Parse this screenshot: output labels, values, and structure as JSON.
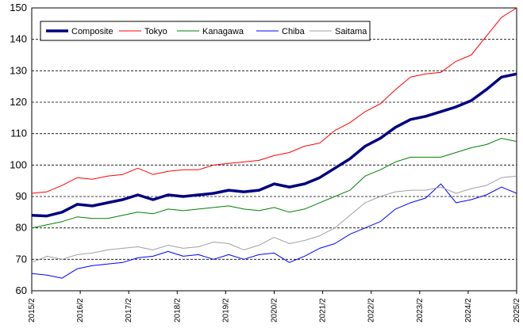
{
  "chart_data": {
    "type": "line",
    "title": "",
    "xlabel": "",
    "ylabel": "",
    "ylim": [
      60,
      150
    ],
    "yticks": [
      60,
      70,
      80,
      90,
      100,
      110,
      120,
      130,
      140,
      150
    ],
    "grid": "horizontal dashed",
    "legend_position": "top-left",
    "x_tick_labels": [
      "2015/2",
      "2016/2",
      "2017/2",
      "2018/2",
      "2019/2",
      "2020/2",
      "2021/2",
      "2022/2",
      "2023/2",
      "2024/2",
      "2025/2"
    ],
    "x_start": "2015/2",
    "x_end": "2025/2",
    "series": [
      {
        "name": "Composite",
        "color": "#000080",
        "values": [
          84.0,
          83.8,
          85.0,
          87.5,
          87.0,
          88.0,
          89.0,
          90.5,
          89.0,
          90.5,
          90.0,
          90.5,
          91.0,
          92.0,
          91.5,
          92.0,
          94.0,
          93.0,
          94.0,
          96.0,
          99.0,
          102.0,
          106.0,
          108.5,
          112.0,
          114.5,
          115.5,
          117.0,
          118.5,
          120.5,
          124.0,
          128.0,
          129.0
        ]
      },
      {
        "name": "Tokyo",
        "color": "#ff0000",
        "values": [
          91.0,
          91.5,
          93.5,
          96.0,
          95.5,
          96.5,
          97.0,
          99.0,
          97.0,
          98.0,
          98.5,
          98.5,
          100.0,
          100.5,
          101.0,
          101.5,
          103.0,
          104.0,
          106.0,
          107.0,
          111.0,
          113.5,
          117.0,
          119.5,
          124.0,
          128.0,
          129.0,
          129.5,
          133.0,
          135.0,
          141.0,
          147.0,
          150.0
        ]
      },
      {
        "name": "Kanagawa",
        "color": "#008000",
        "values": [
          80.0,
          81.0,
          82.0,
          83.5,
          83.0,
          83.0,
          84.0,
          85.0,
          84.5,
          86.0,
          85.5,
          86.0,
          86.5,
          87.0,
          86.0,
          85.5,
          86.5,
          85.0,
          86.0,
          88.0,
          90.0,
          92.0,
          96.5,
          98.5,
          101.0,
          102.5,
          102.5,
          102.5,
          104.0,
          105.5,
          106.5,
          108.5,
          107.5
        ]
      },
      {
        "name": "Chiba",
        "color": "#0000ff",
        "values": [
          65.5,
          65.0,
          64.0,
          67.0,
          68.0,
          68.5,
          69.0,
          70.5,
          71.0,
          72.5,
          71.0,
          71.5,
          70.0,
          71.5,
          70.0,
          71.5,
          72.0,
          69.0,
          71.0,
          73.5,
          75.0,
          78.0,
          80.0,
          82.0,
          86.0,
          88.0,
          89.5,
          94.0,
          88.0,
          89.0,
          90.5,
          93.0,
          91.0
        ]
      },
      {
        "name": "Saitama",
        "color": "#a0a0a0",
        "values": [
          69.0,
          71.0,
          70.0,
          71.5,
          72.0,
          73.0,
          73.5,
          74.0,
          73.0,
          74.5,
          73.5,
          74.0,
          75.5,
          75.0,
          73.0,
          74.5,
          77.0,
          75.0,
          76.0,
          77.5,
          80.0,
          84.0,
          88.0,
          90.0,
          91.5,
          92.0,
          92.0,
          93.0,
          91.0,
          92.5,
          93.5,
          96.0,
          96.5
        ]
      }
    ]
  }
}
